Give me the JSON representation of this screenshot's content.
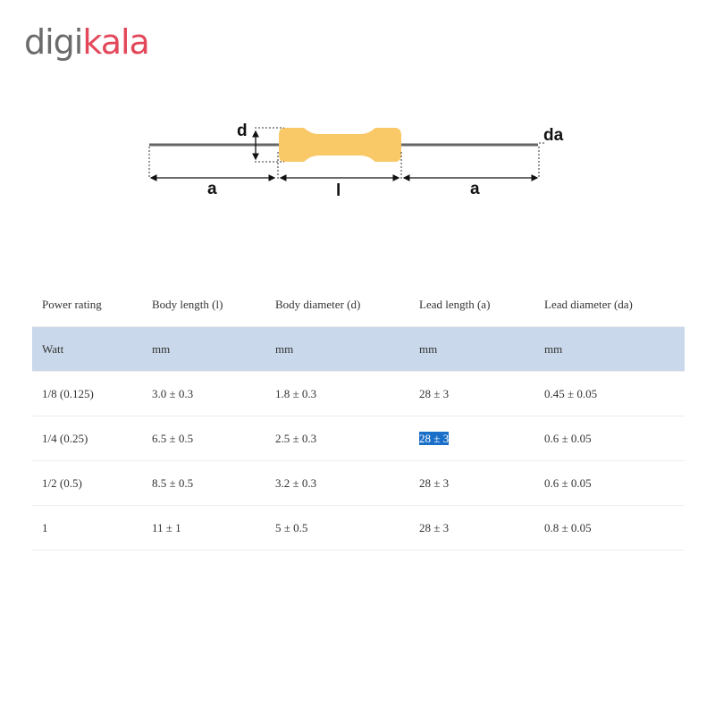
{
  "logo": {
    "part1": "digi",
    "part2": "kala",
    "colors": {
      "gray": "#6b6b6d",
      "red": "#e3485a"
    }
  },
  "diagram": {
    "labels": {
      "d": "d",
      "da": "da",
      "a_left": "a",
      "l": "l",
      "a_right": "a"
    },
    "body_color": "#f9c867"
  },
  "table": {
    "headers": [
      "Power rating",
      "Body length (l)",
      "Body diameter (d)",
      "Lead length (a)",
      "Lead diameter (da)"
    ],
    "units": [
      "Watt",
      "mm",
      "mm",
      "mm",
      "mm"
    ],
    "rows": [
      [
        "1/8 (0.125)",
        "3.0 ± 0.3",
        "1.8 ± 0.3",
        "28 ± 3",
        "0.45 ± 0.05"
      ],
      [
        "1/4 (0.25)",
        "6.5 ± 0.5",
        "2.5 ± 0.3",
        "28 ± 3",
        "0.6 ± 0.05"
      ],
      [
        "1/2 (0.5)",
        "8.5 ± 0.5",
        "3.2 ± 0.3",
        "28 ± 3",
        "0.6 ± 0.05"
      ],
      [
        "1",
        "11 ± 1",
        "5 ± 0.5",
        "28 ± 3",
        "0.8 ± 0.05"
      ]
    ],
    "highlight_color": "#1a6fc9"
  }
}
